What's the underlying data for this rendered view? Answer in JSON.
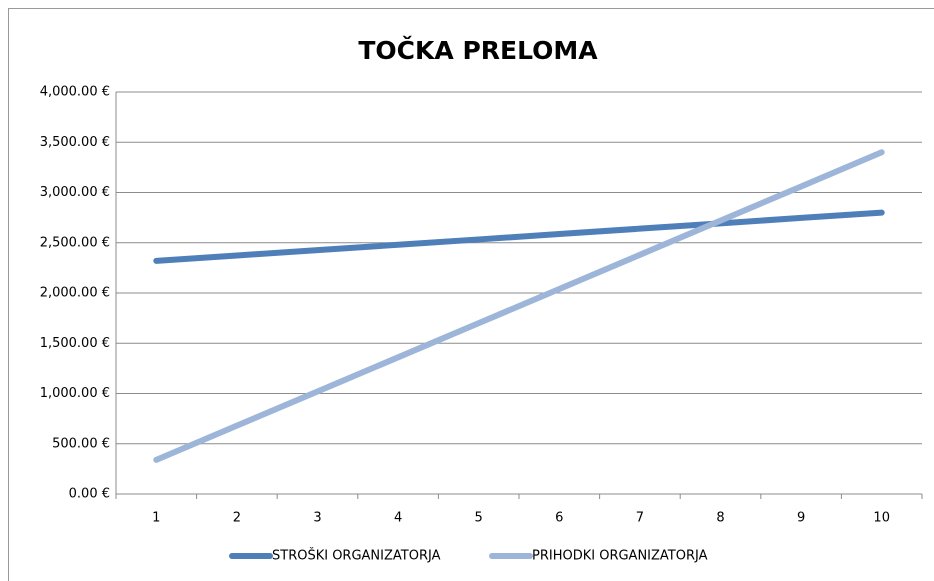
{
  "chart_data": {
    "type": "line",
    "title": "TOČKA PRELOMA",
    "categories": [
      "1",
      "2",
      "3",
      "4",
      "5",
      "6",
      "7",
      "8",
      "9",
      "10"
    ],
    "series": [
      {
        "name": "STROŠKI ORGANIZATORJA",
        "color": "#4f7fb8",
        "values": [
          2320,
          2373,
          2427,
          2480,
          2533,
          2587,
          2640,
          2693,
          2747,
          2800
        ]
      },
      {
        "name": "PRIHODKI ORGANIZATORJA",
        "color": "#9db5d8",
        "values": [
          340,
          680,
          1020,
          1360,
          1700,
          2040,
          2380,
          2720,
          3060,
          3400
        ]
      }
    ],
    "ylim": [
      0,
      4000
    ],
    "yticks": [
      {
        "value": 0,
        "label": "0.00 €"
      },
      {
        "value": 500,
        "label": "500.00 €"
      },
      {
        "value": 1000,
        "label": "1,000.00 €"
      },
      {
        "value": 1500,
        "label": "1,500.00 €"
      },
      {
        "value": 2000,
        "label": "2,000.00 €"
      },
      {
        "value": 2500,
        "label": "2,500.00 €"
      },
      {
        "value": 3000,
        "label": "3,000.00 €"
      },
      {
        "value": 3500,
        "label": "3,500.00 €"
      },
      {
        "value": 4000,
        "label": "4,000.00 €"
      }
    ],
    "grid": true,
    "legend": "bottom"
  }
}
